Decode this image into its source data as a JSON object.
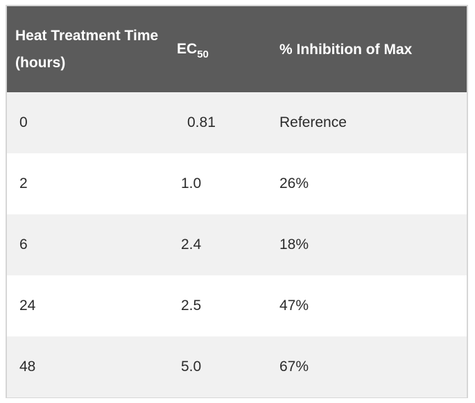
{
  "table": {
    "headers": {
      "col1": "Heat Treatment Time (hours)",
      "col2_main": "EC",
      "col2_sub": "50",
      "col3": "% Inhibition of Max"
    },
    "rows": [
      {
        "time": "0",
        "ec50": "0.81",
        "inhibition": "Reference"
      },
      {
        "time": "2",
        "ec50": "1.0",
        "inhibition": "26%"
      },
      {
        "time": "6",
        "ec50": "2.4",
        "inhibition": "18%"
      },
      {
        "time": "24",
        "ec50": "2.5",
        "inhibition": "47%"
      },
      {
        "time": "48",
        "ec50": "5.0",
        "inhibition": "67%"
      }
    ]
  },
  "colors": {
    "header_bg": "#5b5b5b",
    "header_text": "#ffffff",
    "row_alt_bg": "#f1f1f1",
    "row_bg": "#ffffff",
    "border": "#d6d6d6"
  }
}
